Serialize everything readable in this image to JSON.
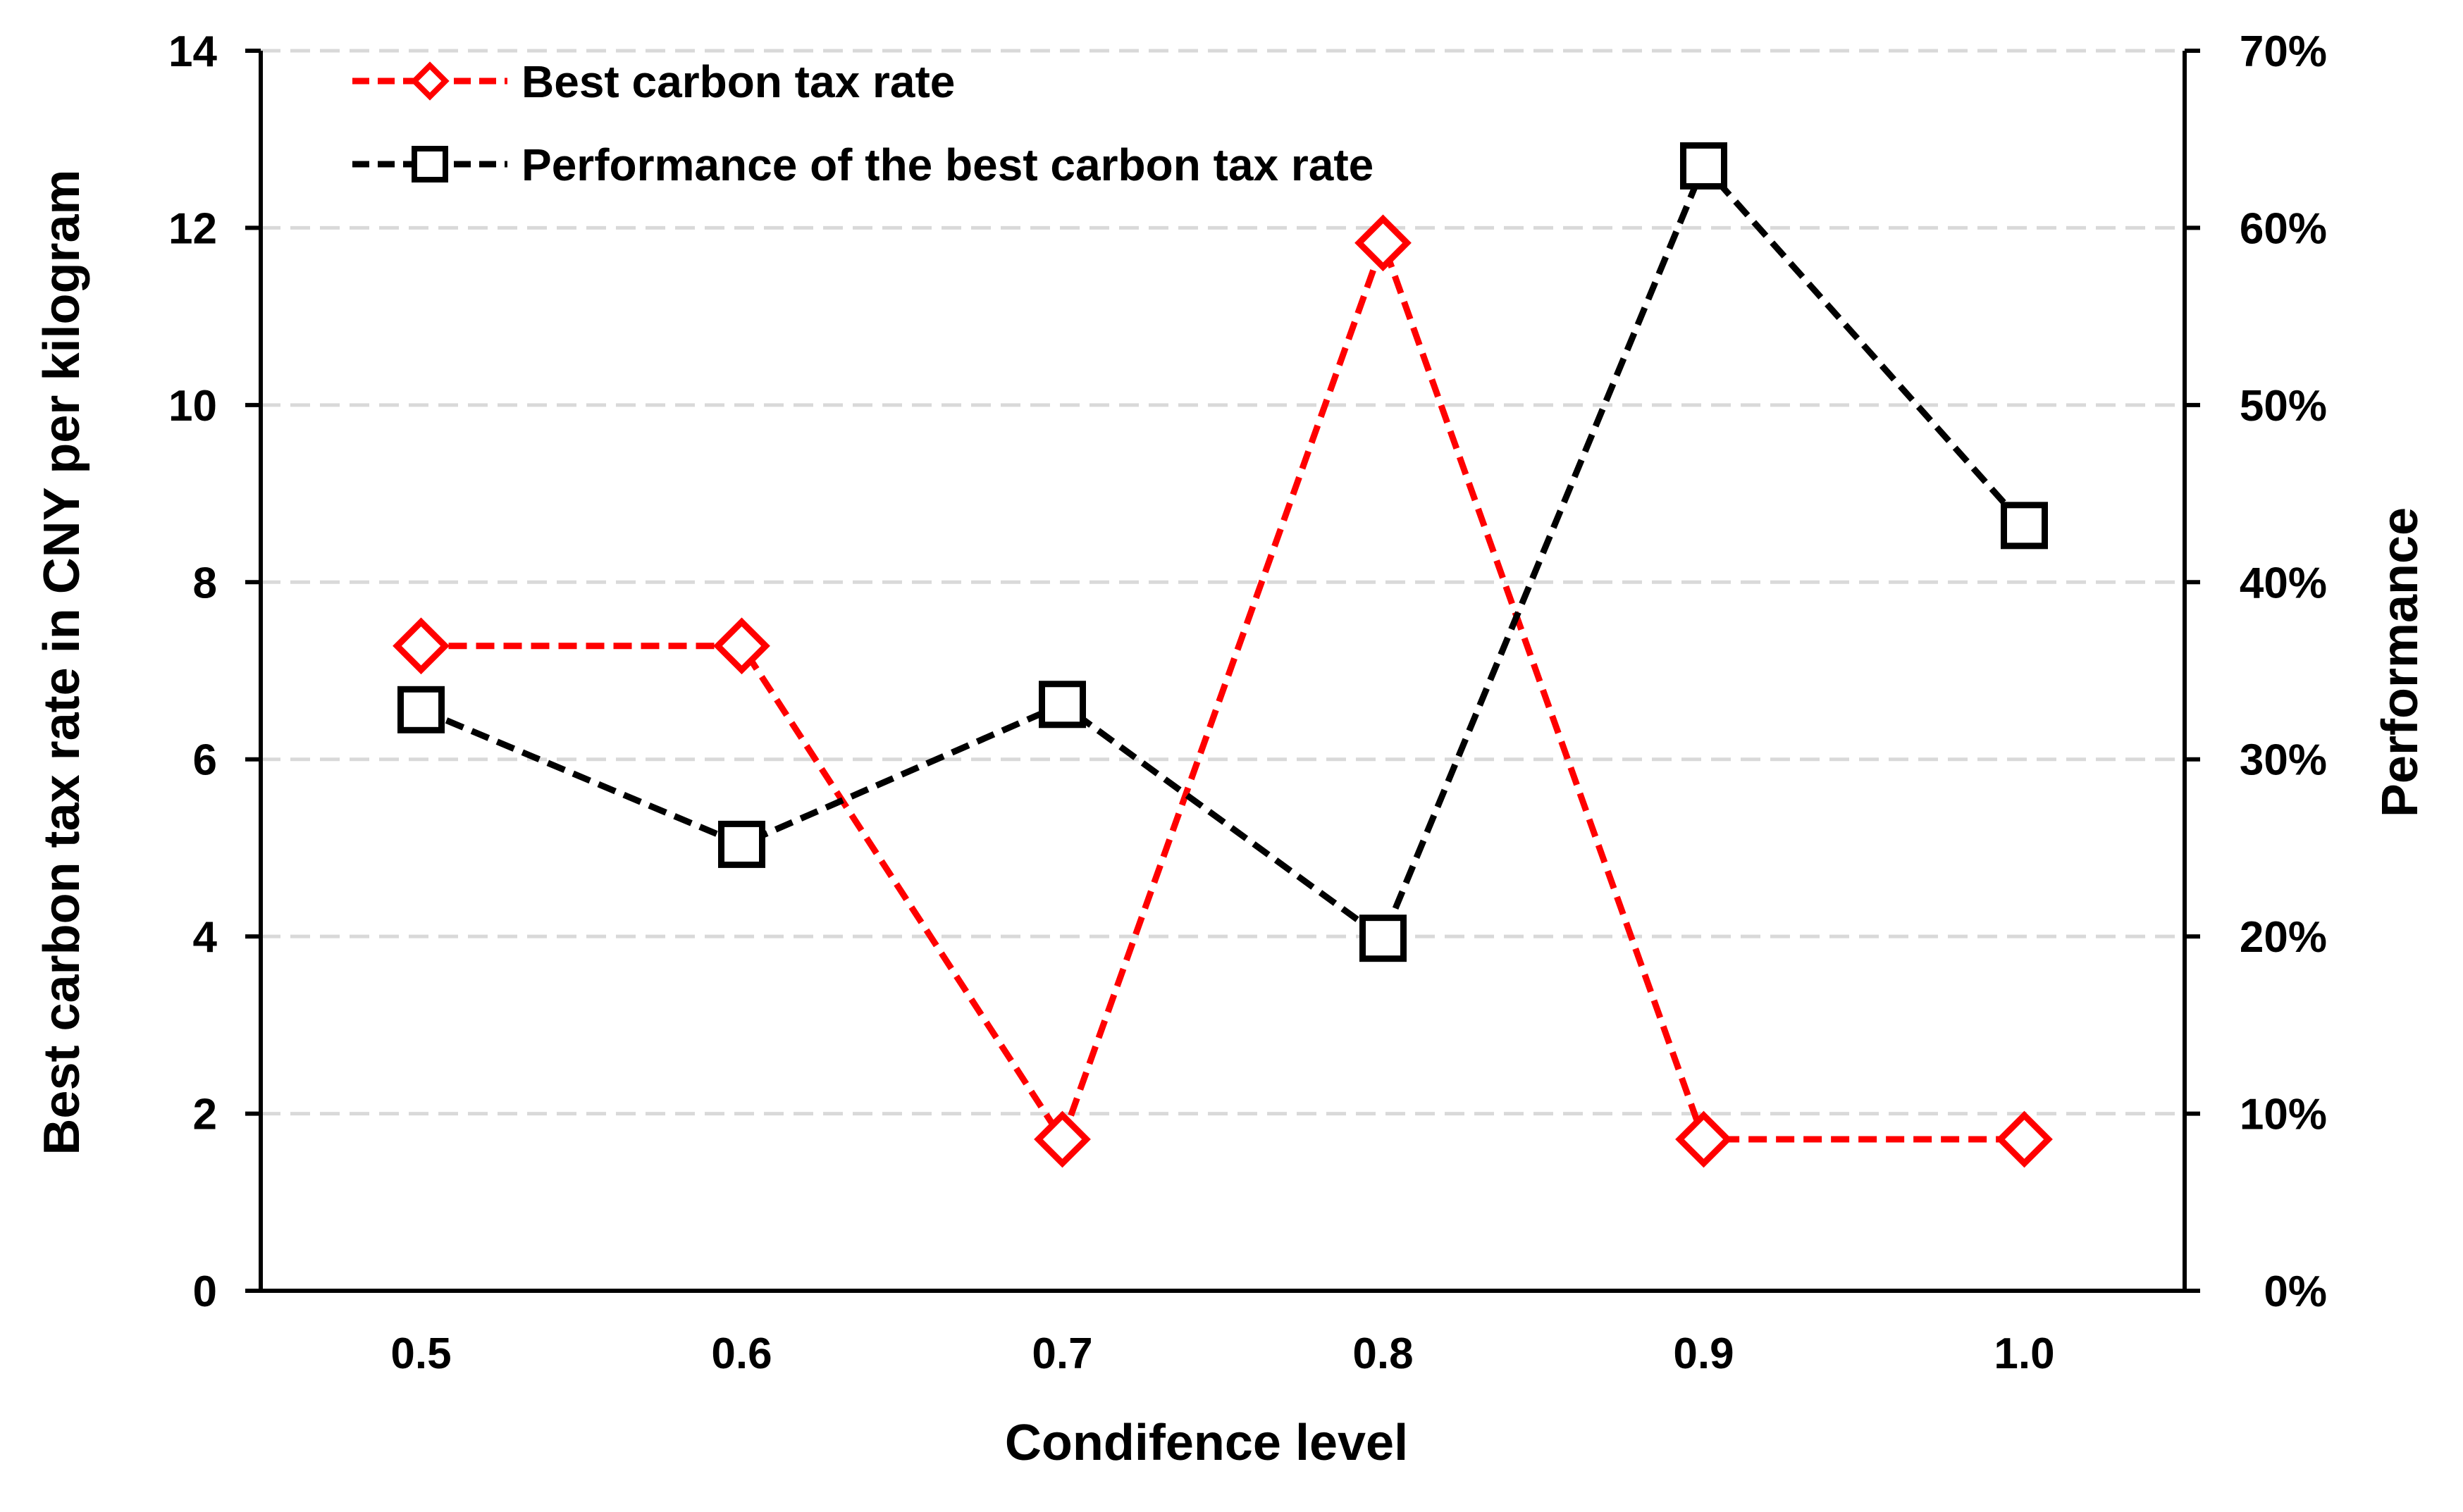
{
  "chart_data": {
    "type": "line",
    "title": "",
    "xlabel": "Condifence level",
    "ylabel": "Best carbon tax rate in CNY per kilogram",
    "ylabel_right": "Performance",
    "categories": [
      "0.5",
      "0.6",
      "0.7",
      "0.8",
      "0.9",
      "1.0"
    ],
    "ylim": [
      0,
      14
    ],
    "y_ticks": [
      "0",
      "2",
      "4",
      "6",
      "8",
      "10",
      "12",
      "14"
    ],
    "ylim_right": [
      0,
      70
    ],
    "y_ticks_right": [
      "0%",
      "10%",
      "20%",
      "30%",
      "40%",
      "50%",
      "60%",
      "70%"
    ],
    "grid": "horizontal dashed",
    "legend_position": "top-left",
    "series": [
      {
        "name": "Best carbon tax rate",
        "axis": "left",
        "color": "#ff0000",
        "marker": "diamond",
        "line_style": "dashed",
        "values": [
          7.28,
          7.28,
          1.71,
          11.83,
          1.71,
          1.71
        ]
      },
      {
        "name": "Performance of the best carbon tax rate",
        "axis": "right",
        "color": "#000000",
        "marker": "square",
        "line_style": "dashed",
        "unit": "%",
        "values": [
          32.8,
          25.2,
          33.1,
          19.9,
          63.5,
          43.2
        ]
      }
    ]
  }
}
